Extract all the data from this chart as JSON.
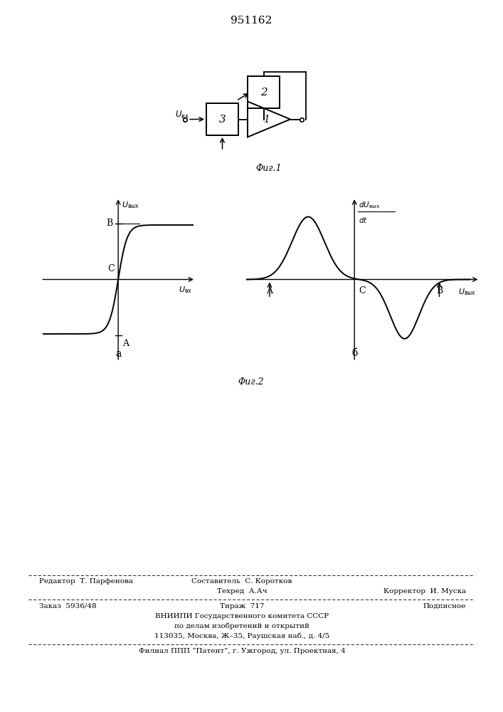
{
  "title_number": "951162",
  "fig1_label": "Φиг.1",
  "fig2_label": "Φиг.2",
  "fig2a_label": "a",
  "fig2b_label": "б",
  "bg_color": "#ffffff",
  "text_color": "#000000",
  "footer_line1_left": "Редактор  Т. Парфенова",
  "footer_line1_center": "Составитель  С. Коротков",
  "footer_line2_center": "Техред  А.Ач",
  "footer_line2_right": "Корректор  И. Муска",
  "footer_line3_left": "Заказ  5936/48",
  "footer_line3_center": "Тираж  717",
  "footer_line3_right": "Подписное",
  "footer_line4": "ВНИИПИ Государственного комитета СССР",
  "footer_line5": "по делам изобретений и открытий",
  "footer_line6": "113035, Москва, Ж–35, Раушская наб., д. 4/5",
  "footer_line7": "Филиал ППП “Патент”, г. Ужгород, ул. Проектная, 4"
}
